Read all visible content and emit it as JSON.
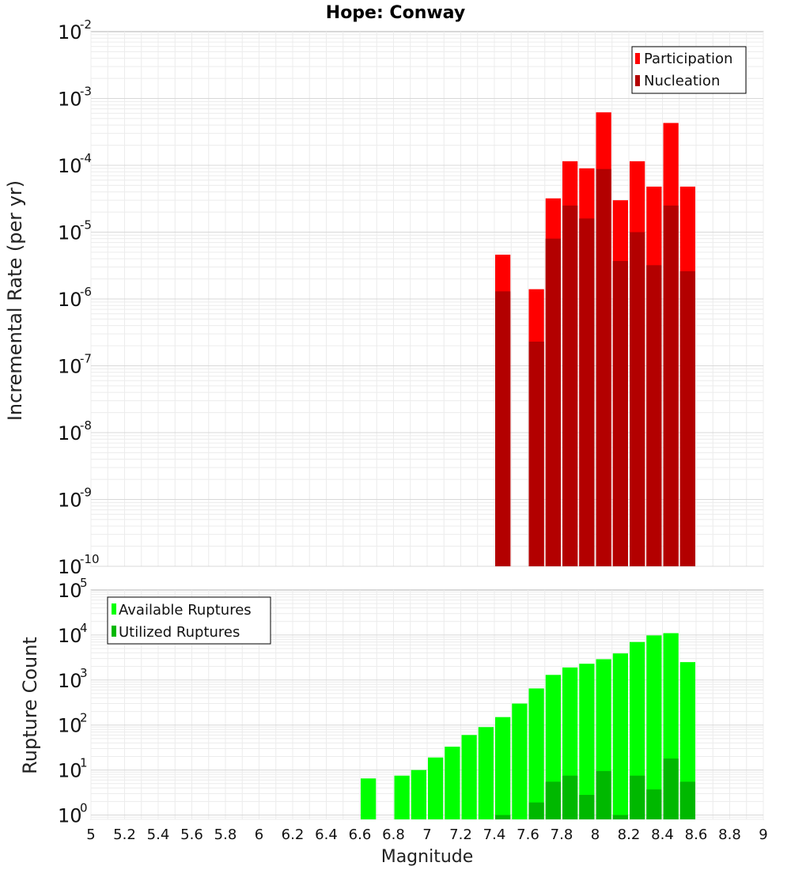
{
  "chart_data": {
    "title": "Hope: Conway",
    "xlabel": "Magnitude",
    "x_ticks": [
      "5",
      "5.2",
      "5.4",
      "5.6",
      "5.8",
      "6",
      "6.2",
      "6.4",
      "6.6",
      "6.8",
      "7",
      "7.2",
      "7.4",
      "7.6",
      "7.8",
      "8",
      "8.2",
      "8.4",
      "8.6",
      "8.8",
      "9"
    ],
    "xlim": [
      5,
      9
    ],
    "bin_centers": [
      6.65,
      6.75,
      6.85,
      6.95,
      7.05,
      7.15,
      7.25,
      7.35,
      7.45,
      7.55,
      7.65,
      7.75,
      7.85,
      7.95,
      8.05,
      8.15,
      8.25,
      8.35,
      8.45,
      8.55
    ],
    "panels": [
      {
        "type": "bar",
        "ylabel": "Incremental Rate (per yr)",
        "yscale": "log",
        "ylim": [
          1e-10,
          0.01
        ],
        "y_tick_exponents": [
          "-10",
          "-9",
          "-8",
          "-7",
          "-6",
          "-5",
          "-4",
          "-3",
          "-2"
        ],
        "legend_position": "top-right",
        "series": [
          {
            "name": "Participation",
            "color": "#ff0000",
            "values": [
              null,
              null,
              null,
              null,
              null,
              null,
              null,
              null,
              4.6e-06,
              null,
              1.4e-06,
              3.2e-05,
              0.000115,
              9e-05,
              0.00062,
              3e-05,
              0.000115,
              4.8e-05,
              0.00043,
              4.8e-05
            ]
          },
          {
            "name": "Nucleation",
            "color": "#b30000",
            "values": [
              null,
              null,
              null,
              null,
              null,
              null,
              null,
              null,
              1.3e-06,
              null,
              2.3e-07,
              8e-06,
              2.5e-05,
              1.6e-05,
              8.8e-05,
              3.7e-06,
              1e-05,
              3.2e-06,
              2.5e-05,
              2.6e-06
            ]
          }
        ]
      },
      {
        "type": "bar",
        "ylabel": "Rupture Count",
        "yscale": "log",
        "ylim": [
          0.8,
          100000.0
        ],
        "y_tick_exponents": [
          "0",
          "1",
          "2",
          "3",
          "4",
          "5"
        ],
        "legend_position": "top-left",
        "series": [
          {
            "name": "Available Ruptures",
            "color": "#00ff00",
            "values": [
              6.5,
              null,
              7.5,
              10,
              19,
              33,
              60,
              90,
              150,
              300,
              650,
              1300,
              1900,
              2300,
              2900,
              3900,
              7000,
              9800,
              11000,
              2500
            ]
          },
          {
            "name": "Utilized Ruptures",
            "color": "#00b800",
            "values": [
              null,
              null,
              null,
              null,
              null,
              null,
              null,
              null,
              1,
              null,
              1.9,
              5.5,
              7.5,
              2.8,
              9.5,
              1,
              7.5,
              3.7,
              18,
              5.5
            ]
          }
        ]
      }
    ]
  }
}
